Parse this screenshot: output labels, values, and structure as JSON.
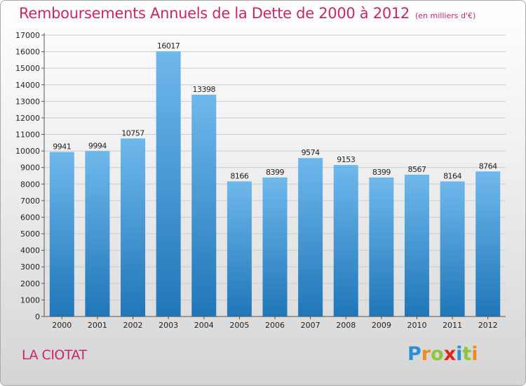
{
  "title": "Remboursements Annuels de la Dette de 2000 à 2012",
  "unit": "(en milliers d'€)",
  "city": "LA CIOTAT",
  "logo": {
    "letters": [
      "P",
      "r",
      "o",
      "x",
      "i",
      "t",
      "i"
    ],
    "colors": [
      "#2a8fd6",
      "#f08a1c",
      "#8cc63f",
      "#e2231a",
      "#2a8fd6",
      "#8cc63f",
      "#f08a1c"
    ]
  },
  "colors": {
    "accent": "#c8266a",
    "bar_top": "#6fb8ec",
    "bar_bottom": "#1f76b8",
    "grid": "#cccccc",
    "axis_text": "#222222"
  },
  "chart_data": {
    "type": "bar",
    "categories": [
      "2000",
      "2001",
      "2002",
      "2003",
      "2004",
      "2005",
      "2006",
      "2007",
      "2008",
      "2009",
      "2010",
      "2011",
      "2012"
    ],
    "values": [
      9941,
      9994,
      10757,
      16017,
      13398,
      8166,
      8399,
      9574,
      9153,
      8399,
      8567,
      8164,
      8764
    ],
    "data_labels": [
      "9941",
      "9994",
      "10757",
      "16017",
      "13398",
      "8166",
      "8399",
      "9574",
      "9153",
      "8399",
      "8567",
      "8164",
      "8764"
    ],
    "ylim": [
      0,
      17000
    ],
    "yticks": [
      0,
      1000,
      2000,
      3000,
      4000,
      5000,
      6000,
      7000,
      8000,
      9000,
      10000,
      11000,
      12000,
      13000,
      14000,
      15000,
      16000,
      17000
    ],
    "grid": true,
    "legend": "none"
  }
}
